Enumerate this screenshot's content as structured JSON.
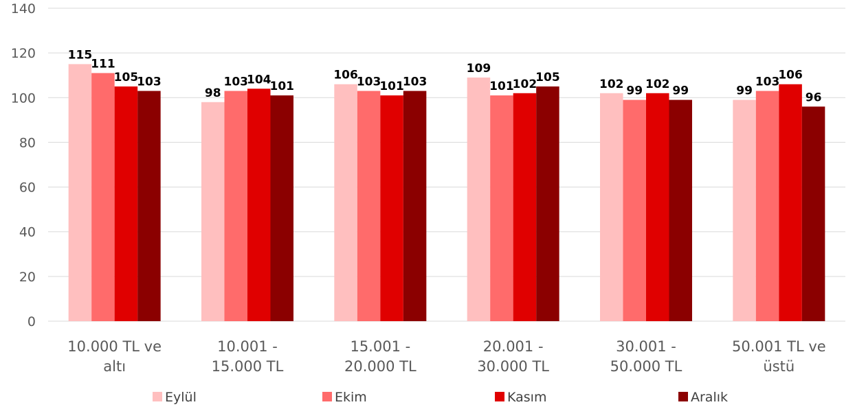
{
  "chart_data": {
    "type": "bar",
    "categories": [
      [
        "10.000 TL ve",
        "altı"
      ],
      [
        "10.001 -",
        "15.000 TL"
      ],
      [
        "15.001 -",
        "20.000 TL"
      ],
      [
        "20.001 -",
        "30.000 TL"
      ],
      [
        "30.001 -",
        "50.000 TL"
      ],
      [
        "50.001 TL ve",
        "üstü"
      ]
    ],
    "series": [
      {
        "name": "Eylül",
        "color": "#ffbfbf",
        "values": [
          115,
          98,
          106,
          109,
          102,
          99
        ]
      },
      {
        "name": "Ekim",
        "color": "#ff6b6b",
        "values": [
          111,
          103,
          103,
          101,
          99,
          103
        ]
      },
      {
        "name": "Kasım",
        "color": "#e00000",
        "values": [
          105,
          104,
          101,
          102,
          102,
          106
        ]
      },
      {
        "name": "Aralık",
        "color": "#8b0000",
        "values": [
          103,
          101,
          103,
          105,
          99,
          96
        ]
      }
    ],
    "ylim": [
      0,
      140
    ],
    "yticks": [
      0,
      20,
      40,
      60,
      80,
      100,
      120,
      140
    ],
    "grid": true,
    "legend": "bottom",
    "data_labels": true,
    "title": "",
    "xlabel": "",
    "ylabel": ""
  }
}
